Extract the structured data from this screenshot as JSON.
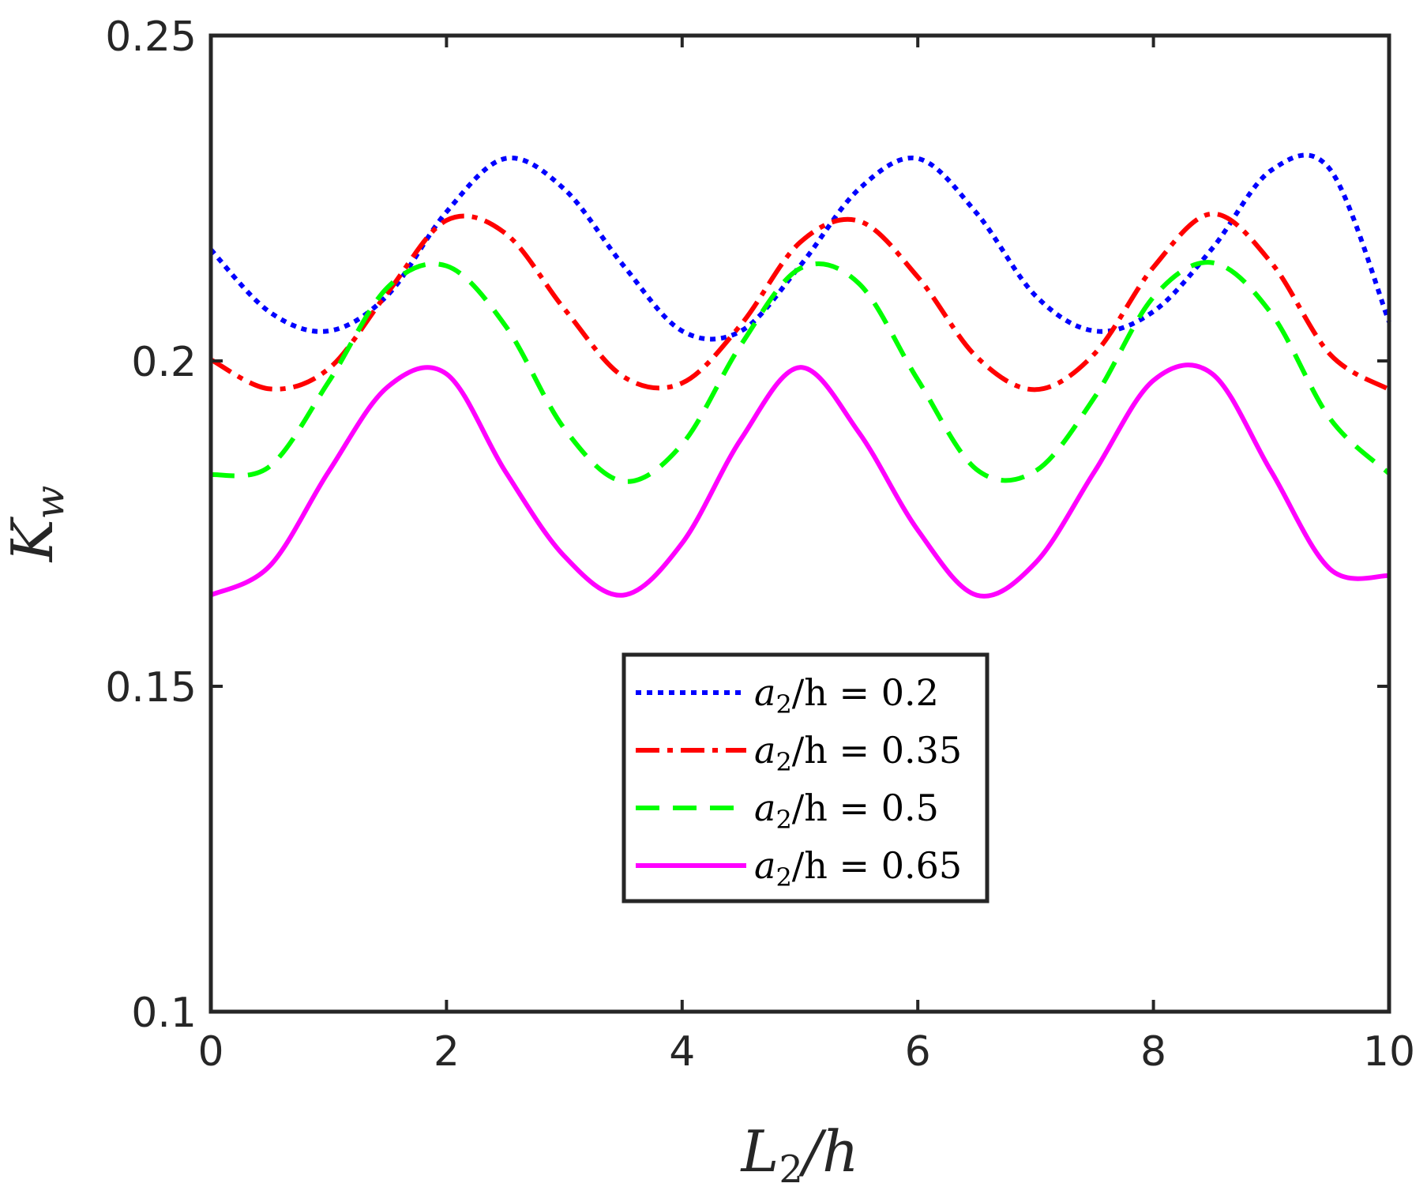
{
  "chart_data": {
    "type": "line",
    "title": "",
    "xlabel": {
      "main": "L",
      "sub": "2",
      "rest": "/h"
    },
    "ylabel": {
      "main": "K",
      "sub": "w"
    },
    "xlim": [
      0,
      10
    ],
    "ylim": [
      0.1,
      0.25
    ],
    "xticks": [
      0,
      2,
      4,
      6,
      8,
      10
    ],
    "xtick_labels": [
      "0",
      "2",
      "4",
      "6",
      "8",
      "10"
    ],
    "yticks": [
      0.1,
      0.15,
      0.2,
      0.25
    ],
    "ytick_labels": [
      "0.1",
      "0.15",
      "0.2",
      "0.25"
    ],
    "grid": false,
    "legend_position": "center",
    "x": [
      0.0,
      0.5,
      1.0,
      1.5,
      2.0,
      2.5,
      3.0,
      3.5,
      4.0,
      4.5,
      5.0,
      5.5,
      6.0,
      6.5,
      7.0,
      7.5,
      8.0,
      8.5,
      9.0,
      9.5,
      10.0
    ],
    "series": [
      {
        "name": "a2/h = 0.2",
        "legend": {
          "a": "a",
          "sub": "2",
          "rest": "/h = 0.2"
        },
        "color": "#0000ff",
        "style": "dotted",
        "values": [
          0.2171,
          0.2075,
          0.2046,
          0.2101,
          0.2229,
          0.2311,
          0.2264,
          0.2147,
          0.2046,
          0.2046,
          0.2146,
          0.2264,
          0.2311,
          0.2227,
          0.21,
          0.2046,
          0.2076,
          0.2173,
          0.2293,
          0.2294,
          0.206
        ]
      },
      {
        "name": "a2/h = 0.35",
        "legend": {
          "a": "a",
          "sub": "2",
          "rest": "/h = 0.35"
        },
        "color": "#ff0000",
        "style": "dashdot",
        "values": [
          0.2002,
          0.1957,
          0.1988,
          0.2105,
          0.2216,
          0.2196,
          0.208,
          0.1976,
          0.1966,
          0.2056,
          0.2182,
          0.2215,
          0.2129,
          0.2006,
          0.1956,
          0.2011,
          0.2144,
          0.2226,
          0.2151,
          0.201,
          0.1956
        ]
      },
      {
        "name": "a2/h = 0.5",
        "legend": {
          "a": "a",
          "sub": "2",
          "rest": "/h = 0.5"
        },
        "color": "#00ff00",
        "style": "dashed",
        "values": [
          0.1825,
          0.1838,
          0.1968,
          0.2113,
          0.2146,
          0.2054,
          0.1896,
          0.1815,
          0.1872,
          0.2025,
          0.2142,
          0.2119,
          0.1971,
          0.1833,
          0.1831,
          0.1944,
          0.2098,
          0.2151,
          0.2073,
          0.1911,
          0.1827
        ]
      },
      {
        "name": "a2/h = 0.65",
        "legend": {
          "a": "a",
          "sub": "2",
          "rest": "/h = 0.65"
        },
        "color": "#ff00ff",
        "style": "solid",
        "values": [
          0.164,
          0.1685,
          0.183,
          0.196,
          0.198,
          0.183,
          0.17,
          0.164,
          0.172,
          0.188,
          0.199,
          0.189,
          0.174,
          0.164,
          0.169,
          0.183,
          0.197,
          0.198,
          0.183,
          0.168,
          0.167
        ]
      }
    ]
  }
}
